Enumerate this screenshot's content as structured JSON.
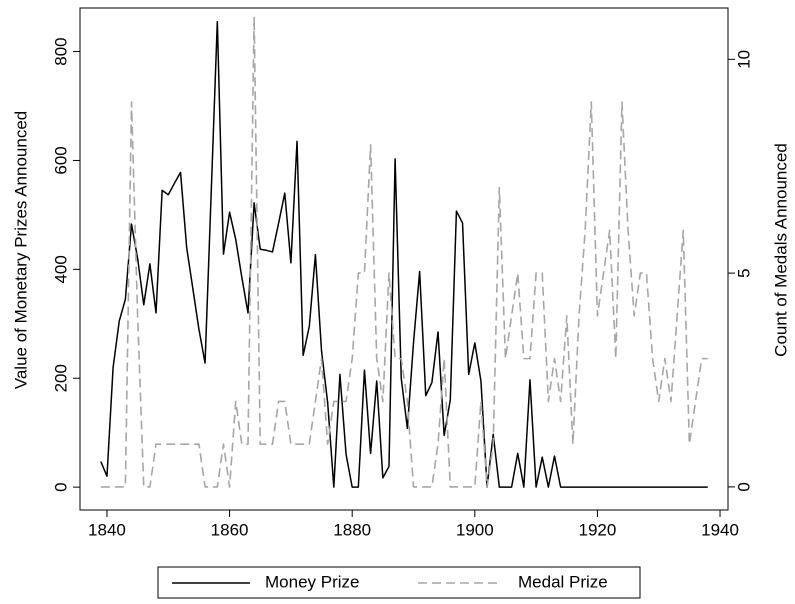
{
  "chart_data": {
    "type": "line",
    "x_axis_label": null,
    "y_label": "Value of Monetary Prizes Announced",
    "y2_label": "Count of Medals Announced",
    "x": [
      1839,
      1840,
      1841,
      1842,
      1843,
      1844,
      1845,
      1846,
      1847,
      1848,
      1849,
      1850,
      1851,
      1852,
      1853,
      1854,
      1855,
      1856,
      1857,
      1858,
      1859,
      1860,
      1861,
      1862,
      1863,
      1864,
      1865,
      1866,
      1867,
      1868,
      1869,
      1870,
      1871,
      1872,
      1873,
      1874,
      1875,
      1876,
      1877,
      1878,
      1879,
      1880,
      1881,
      1882,
      1883,
      1884,
      1885,
      1886,
      1887,
      1888,
      1889,
      1890,
      1891,
      1892,
      1893,
      1894,
      1895,
      1896,
      1897,
      1898,
      1899,
      1900,
      1901,
      1902,
      1903,
      1904,
      1905,
      1906,
      1907,
      1908,
      1909,
      1910,
      1911,
      1912,
      1913,
      1914,
      1915,
      1916,
      1917,
      1918,
      1919,
      1920,
      1921,
      1922,
      1923,
      1924,
      1925,
      1926,
      1927,
      1928,
      1929,
      1930,
      1931,
      1932,
      1933,
      1934,
      1935,
      1936,
      1937,
      1938
    ],
    "series": [
      {
        "name": "Money Prize",
        "color": "#000000",
        "dash": false,
        "axis": "y",
        "values": [
          47,
          20,
          220,
          305,
          345,
          483,
          420,
          335,
          410,
          320,
          545,
          537,
          558,
          578,
          440,
          365,
          290,
          228,
          540,
          855,
          428,
          505,
          455,
          385,
          320,
          522,
          437,
          435,
          432,
          485,
          540,
          412,
          635,
          242,
          295,
          427,
          250,
          155,
          0,
          207,
          60,
          0,
          0,
          215,
          62,
          195,
          17,
          38,
          603,
          200,
          108,
          265,
          396,
          168,
          192,
          285,
          95,
          160,
          507,
          485,
          207,
          265,
          195,
          0,
          97,
          0,
          0,
          0,
          62,
          0,
          197,
          0,
          55,
          0,
          57,
          0,
          0,
          0,
          0,
          0,
          0,
          0,
          0,
          0,
          0,
          0,
          0,
          0,
          0,
          0,
          0,
          0,
          0,
          0,
          0,
          0,
          0,
          0,
          0,
          0
        ]
      },
      {
        "name": "Medal Prize",
        "color": "#a6a6a6",
        "dash": true,
        "axis": "y2",
        "values": [
          0,
          0,
          0,
          0,
          0,
          9,
          4,
          0,
          0,
          1,
          1,
          1,
          1,
          1,
          1,
          1,
          1,
          0,
          0,
          0,
          1,
          0,
          2,
          1,
          1,
          11,
          1,
          1,
          1,
          2,
          2,
          1,
          1,
          1,
          1,
          2,
          3,
          1,
          2,
          2,
          2,
          3,
          5,
          5,
          8,
          3,
          2,
          5,
          3,
          3,
          2,
          0,
          0,
          0,
          0,
          1,
          3,
          0,
          0,
          0,
          0,
          0,
          2,
          0,
          1,
          7,
          3,
          4,
          5,
          3,
          3,
          5,
          5,
          2,
          3,
          2,
          4,
          1,
          4,
          6,
          9,
          4,
          5,
          6,
          3,
          9,
          6,
          4,
          5,
          5,
          3,
          2,
          3,
          2,
          4,
          6,
          1,
          2,
          3,
          3
        ]
      }
    ],
    "xlim": [
      1835.6,
      1941.3
    ],
    "xticks": [
      1840,
      1860,
      1880,
      1900,
      1920,
      1940
    ],
    "ylim": [
      -42,
      880
    ],
    "yticks": [
      0,
      200,
      400,
      600,
      800
    ],
    "y2lim": [
      -0.54,
      11.2
    ],
    "y2ticks": [
      0,
      5,
      10
    ],
    "grid": false,
    "legend": "bottom"
  }
}
